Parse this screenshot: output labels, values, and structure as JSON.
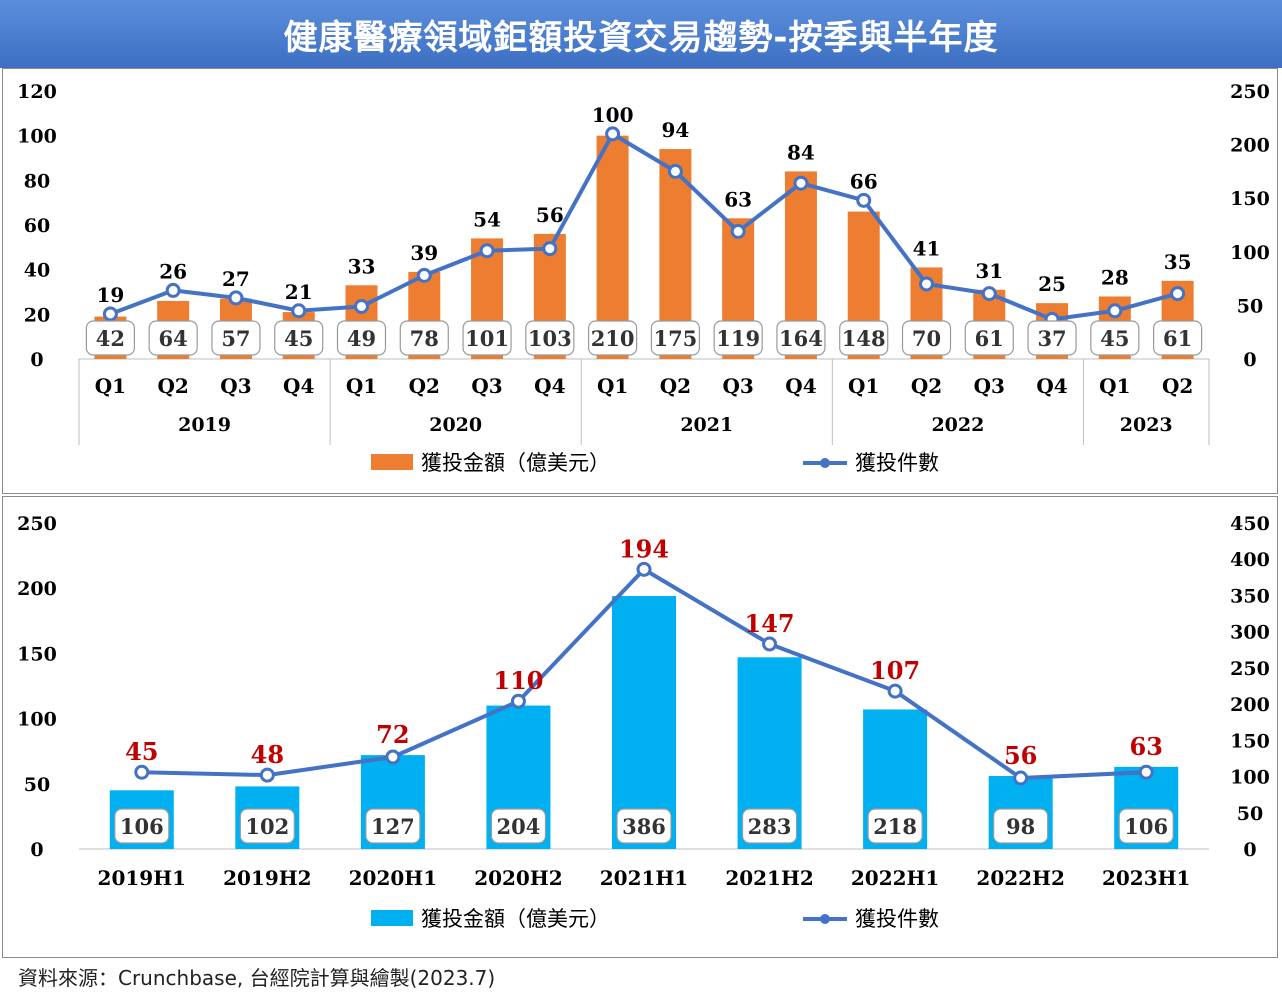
{
  "title": "健康醫療領域鉅額投資交易趨勢-按季與半年度",
  "source": "資料來源：Crunchbase, 台經院計算與繪製(2023.7)",
  "colors": {
    "title_bg": "#4a7fd4",
    "bar_quarterly": "#ed7d31",
    "bar_half": "#00b0f0",
    "line": "#4472c4",
    "label_red": "#c00000"
  },
  "chart_data": [
    {
      "type": "bar",
      "categories": [
        "Q1",
        "Q2",
        "Q3",
        "Q4",
        "Q1",
        "Q2",
        "Q3",
        "Q4",
        "Q1",
        "Q2",
        "Q3",
        "Q4",
        "Q1",
        "Q2",
        "Q3",
        "Q4",
        "Q1",
        "Q2"
      ],
      "years": [
        {
          "label": "2019",
          "span": 4
        },
        {
          "label": "2020",
          "span": 4
        },
        {
          "label": "2021",
          "span": 4
        },
        {
          "label": "2022",
          "span": 4
        },
        {
          "label": "2023",
          "span": 2
        }
      ],
      "series": [
        {
          "name": "獲投金額（億美元）",
          "type": "bar",
          "axis": "left",
          "values": [
            19,
            26,
            27,
            21,
            33,
            39,
            54,
            56,
            100,
            94,
            63,
            84,
            66,
            41,
            31,
            25,
            28,
            35
          ]
        },
        {
          "name": "獲投件數",
          "type": "line",
          "axis": "right",
          "values": [
            42,
            64,
            57,
            45,
            49,
            78,
            101,
            103,
            210,
            175,
            119,
            164,
            148,
            70,
            61,
            37,
            45,
            61
          ]
        }
      ],
      "ylim_left": [
        0,
        120
      ],
      "yticks_left": [
        "0",
        "20",
        "40",
        "60",
        "80",
        "100",
        "120"
      ],
      "ylim_right": [
        0,
        250
      ],
      "yticks_right": [
        "0",
        "50",
        "100",
        "150",
        "200",
        "250"
      ],
      "legend": "bottom",
      "grid": false
    },
    {
      "type": "bar",
      "categories": [
        "2019H1",
        "2019H2",
        "2020H1",
        "2020H2",
        "2021H1",
        "2021H2",
        "2022H1",
        "2022H2",
        "2023H1"
      ],
      "series": [
        {
          "name": "獲投金額（億美元）",
          "type": "bar",
          "axis": "left",
          "values": [
            45,
            48,
            72,
            110,
            194,
            147,
            107,
            56,
            63
          ]
        },
        {
          "name": "獲投件數",
          "type": "line",
          "axis": "right",
          "values": [
            106,
            102,
            127,
            204,
            386,
            283,
            218,
            98,
            106
          ]
        }
      ],
      "ylim_left": [
        0,
        250
      ],
      "yticks_left": [
        "0",
        "50",
        "100",
        "150",
        "200",
        "250"
      ],
      "ylim_right": [
        0,
        450
      ],
      "yticks_right": [
        "0",
        "50",
        "100",
        "150",
        "200",
        "250",
        "300",
        "350",
        "400",
        "450"
      ],
      "legend": "bottom",
      "grid": false
    }
  ]
}
